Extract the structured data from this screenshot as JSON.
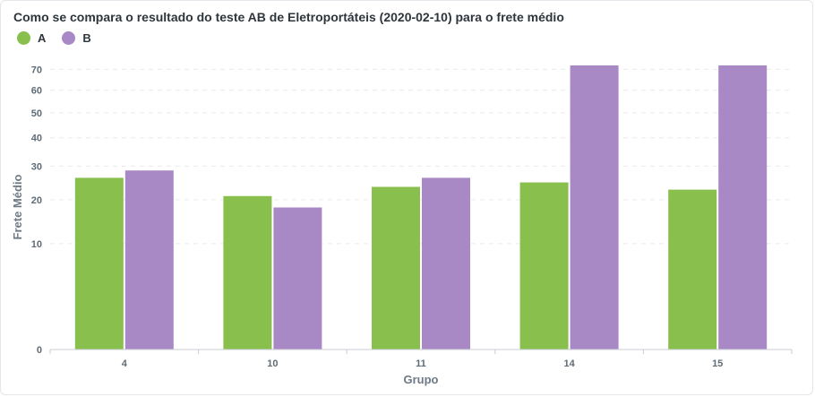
{
  "title": "Como se compara o resultado do teste AB de Eletroportáteis (2020-02-10) para o frete médio",
  "chart_data": {
    "type": "bar",
    "title": "Como se compara o resultado do teste AB de Eletroportáteis (2020-02-10) para o frete médio",
    "xlabel": "Grupo",
    "ylabel": "Frete Médio",
    "categories": [
      "4",
      "10",
      "11",
      "14",
      "15"
    ],
    "series": [
      {
        "name": "A",
        "color": "#88bf4d",
        "values": [
          26.3,
          21.0,
          23.6,
          24.9,
          22.8
        ]
      },
      {
        "name": "B",
        "color": "#a989c5",
        "values": [
          28.6,
          18.0,
          26.3,
          72,
          72
        ]
      }
    ],
    "yscale": "sqrt",
    "ylim": [
      0,
      72
    ],
    "yticks": [
      0,
      10,
      20,
      30,
      40,
      50,
      60,
      70
    ],
    "grid": true,
    "legend": "top-left"
  }
}
